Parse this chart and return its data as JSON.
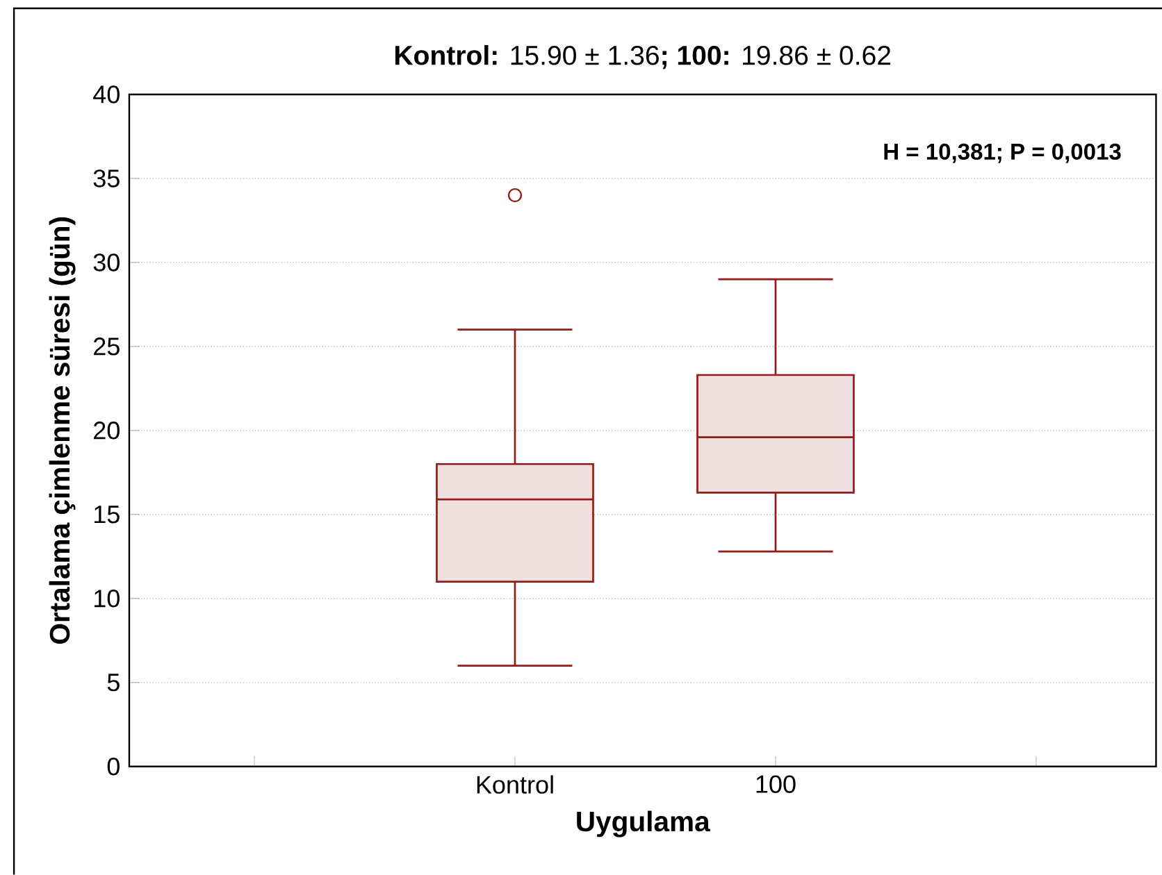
{
  "chart_data": {
    "type": "box",
    "title": "**Kontrol:** 15.90 ± 1.36**;** **100:** 19.86 ± 0.62",
    "xlabel": "Uygulama",
    "ylabel": "Ortalama çimlenme süresi (gün)",
    "annotations": [
      "H = 10,381; P = 0,0013"
    ],
    "categories": [
      "Kontrol",
      "100"
    ],
    "color": "#951b1b",
    "boxes": [
      {
        "low": 6,
        "q1": 11,
        "median": 15.9,
        "q3": 18,
        "high": 26,
        "outliers": [
          34
        ]
      },
      {
        "low": 12.8,
        "q1": 16.3,
        "median": 19.6,
        "q3": 23.3,
        "high": 29
      }
    ],
    "ylim": [
      0,
      40
    ],
    "yticks": [
      0,
      5,
      10,
      15,
      20,
      25,
      30,
      35,
      40
    ],
    "grid": "y"
  }
}
